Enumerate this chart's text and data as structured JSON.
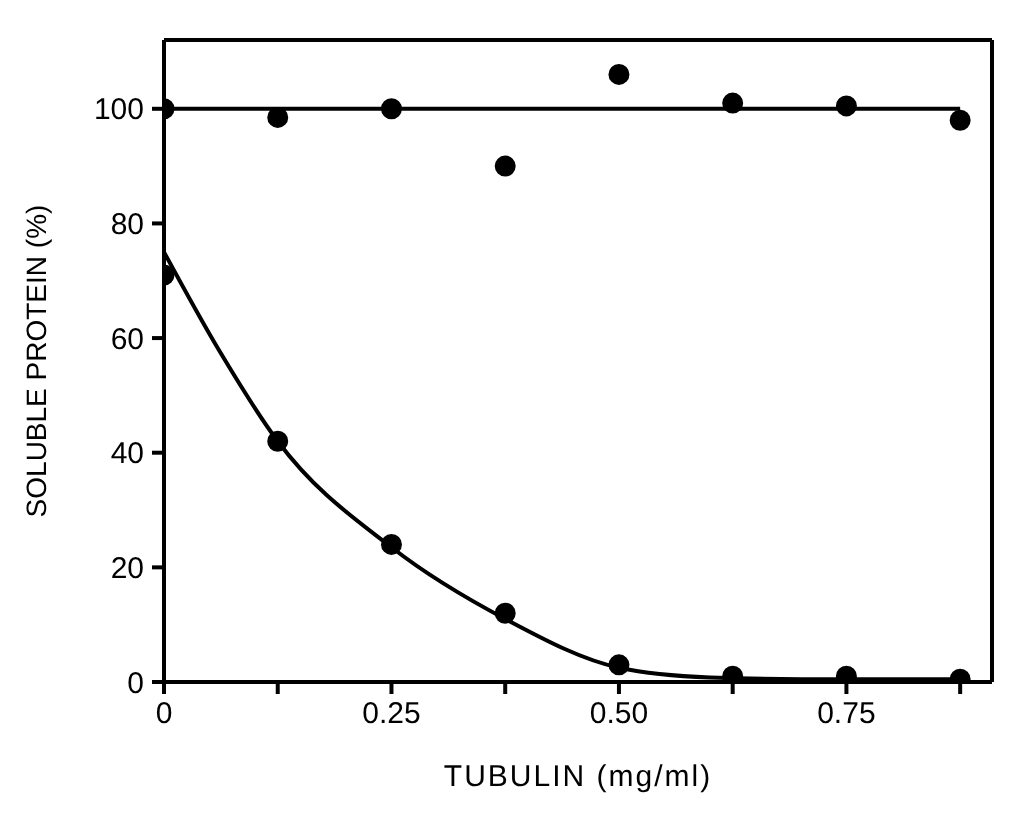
{
  "chart_data": {
    "type": "scatter",
    "xlabel": "TUBULIN (mg/ml)",
    "ylabel": "SOLUBLE PROTEIN (%)",
    "xlim": [
      0,
      0.91
    ],
    "ylim": [
      0,
      112
    ],
    "xticks": [
      0,
      {
        "value": 0.125,
        "label": null
      },
      {
        "value": 0.25,
        "label": "0.25"
      },
      {
        "value": 0.375,
        "label": null
      },
      {
        "value": 0.5,
        "label": "0.50"
      },
      {
        "value": 0.625,
        "label": null
      },
      {
        "value": 0.75,
        "label": "0.75"
      },
      {
        "value": 0.875,
        "label": null
      }
    ],
    "yticks": [
      0,
      20,
      40,
      60,
      80,
      100
    ],
    "series": [
      {
        "type": "scatter",
        "marker": "circle",
        "color": "#000000",
        "x": [
          0,
          0.125,
          0.25,
          0.375,
          0.5,
          0.625,
          0.75,
          0.875
        ],
        "values": [
          100,
          98.5,
          100,
          90,
          106,
          101,
          100.5,
          98
        ]
      },
      {
        "type": "scatter",
        "marker": "circle",
        "color": "#000000",
        "x": [
          0,
          0.125,
          0.25,
          0.375,
          0.5,
          0.625,
          0.75,
          0.875
        ],
        "values": [
          71,
          42,
          24,
          12,
          3,
          1,
          1,
          0.5
        ]
      },
      {
        "type": "line",
        "color": "#000000",
        "x": [
          0,
          0.875
        ],
        "values": [
          100,
          100
        ]
      },
      {
        "type": "line",
        "color": "#000000",
        "x": [
          0,
          0.06,
          0.125,
          0.25,
          0.375,
          0.5,
          0.6,
          0.7,
          0.875
        ],
        "values": [
          75,
          58,
          42,
          23.5,
          11,
          2.5,
          0.8,
          0.5,
          0.5
        ]
      }
    ]
  }
}
